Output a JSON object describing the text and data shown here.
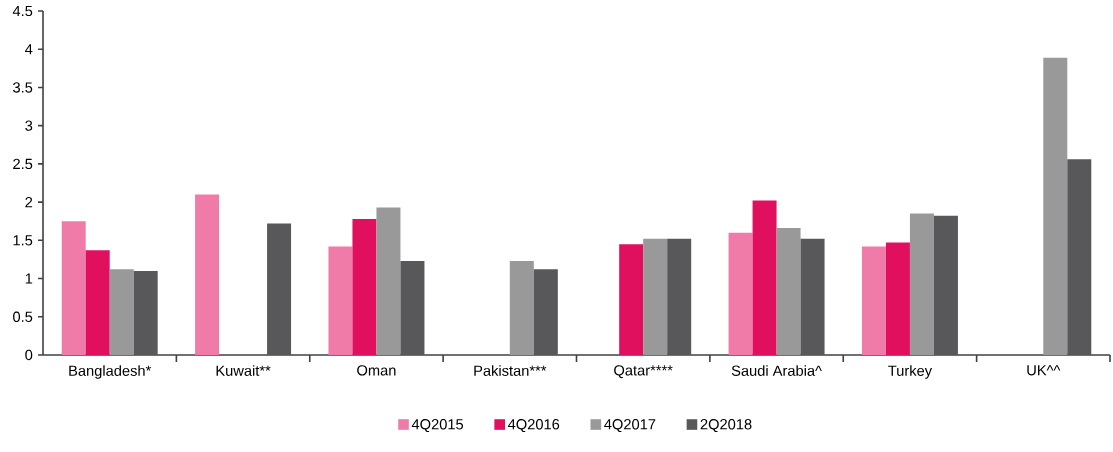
{
  "chart_data": {
    "type": "bar",
    "categories": [
      "Bangladesh*",
      "Kuwait**",
      "Oman",
      "Pakistan***",
      "Qatar****",
      "Saudi Arabia^",
      "Turkey",
      "UK^^"
    ],
    "series": [
      {
        "name": "4Q2015",
        "color": "#f07aa8",
        "values": [
          1.75,
          2.1,
          1.42,
          null,
          null,
          1.6,
          1.42,
          null
        ]
      },
      {
        "name": "4Q2016",
        "color": "#e0105f",
        "values": [
          1.37,
          null,
          1.78,
          null,
          1.45,
          2.02,
          1.47,
          null
        ]
      },
      {
        "name": "4Q2017",
        "color": "#999999",
        "values": [
          1.12,
          null,
          1.93,
          1.23,
          1.52,
          1.66,
          1.85,
          3.89
        ]
      },
      {
        "name": "2Q2018",
        "color": "#58585a",
        "values": [
          1.1,
          1.72,
          1.23,
          1.12,
          1.52,
          1.52,
          1.82,
          2.56
        ]
      }
    ],
    "ylim": [
      0,
      4.5
    ],
    "yticks": [
      0,
      0.5,
      1,
      1.5,
      2,
      2.5,
      3,
      3.5,
      4,
      4.5
    ],
    "legend": "bottom"
  }
}
